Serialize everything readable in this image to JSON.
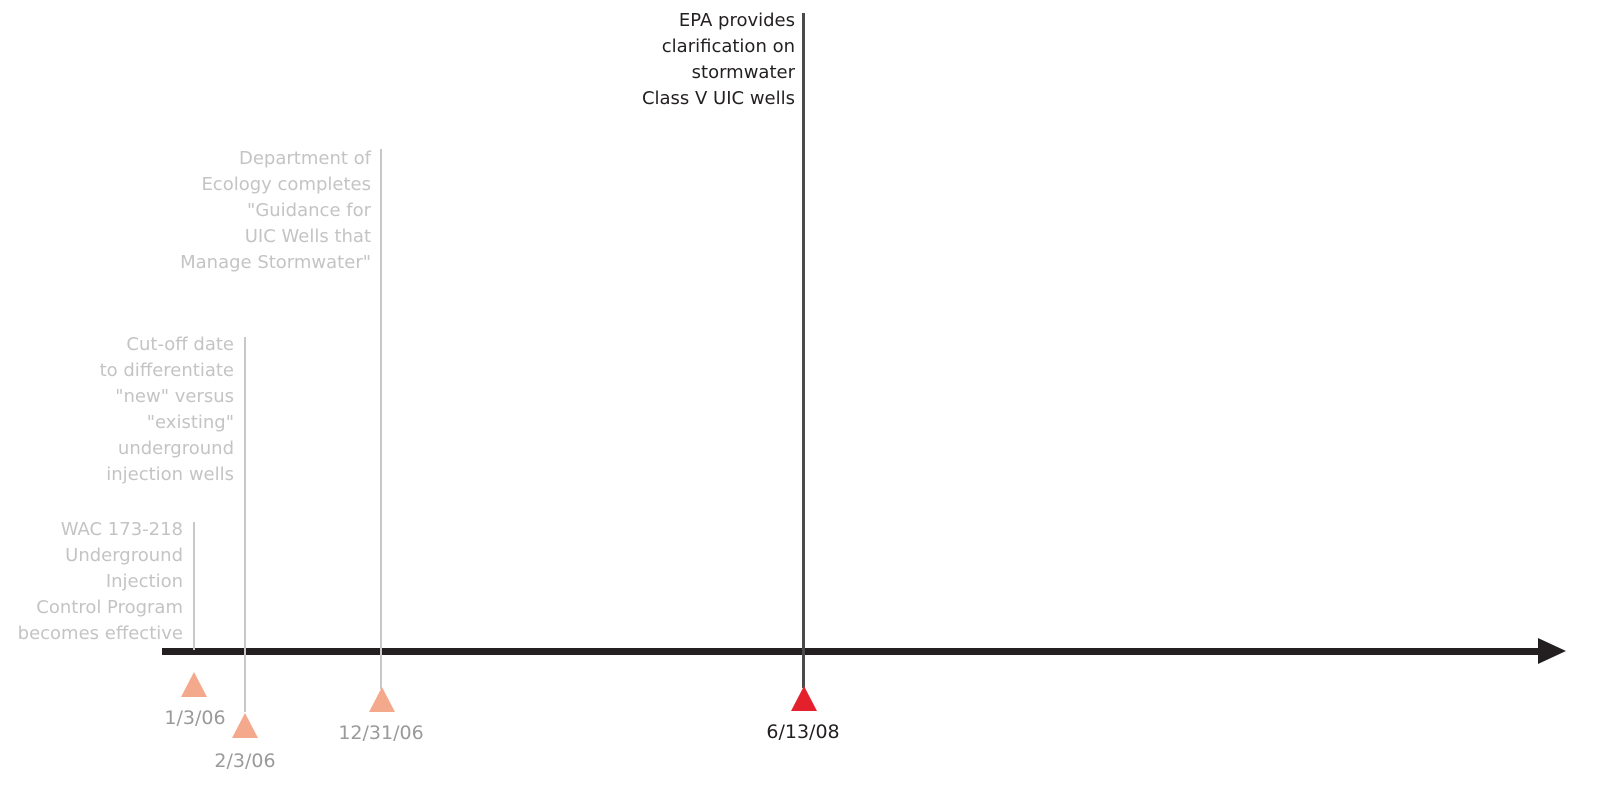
{
  "colors": {
    "axis": "#231f20",
    "faded_line": "#c8c8c8",
    "faded_text": "#c4c4c4",
    "faded_marker": "#f4a88c",
    "active_marker": "#e3202c",
    "active_text": "#231f20"
  },
  "events": [
    {
      "date": "1/3/06",
      "description": [
        "WAC 173-218",
        "Underground",
        "Injection",
        "Control Program",
        "becomes effective"
      ],
      "state": "faded"
    },
    {
      "date": "2/3/06",
      "description": [
        "Cut-off date",
        "to differentiate",
        "\"new\" versus",
        "\"existing\"",
        "underground",
        "injection wells"
      ],
      "state": "faded"
    },
    {
      "date": "12/31/06",
      "description": [
        "Department of",
        "Ecology completes",
        "\"Guidance for",
        "UIC Wells that",
        "Manage Stormwater\""
      ],
      "state": "faded"
    },
    {
      "date": "6/13/08",
      "description": [
        "EPA provides",
        "clarification on",
        "stormwater",
        "Class V UIC wells"
      ],
      "state": "active"
    }
  ]
}
